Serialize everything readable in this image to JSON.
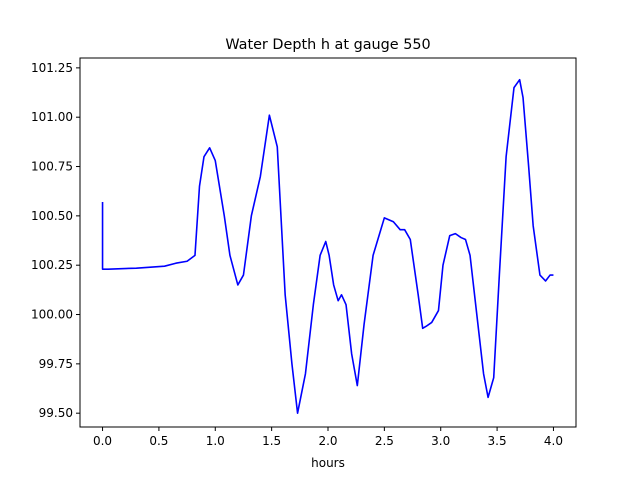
{
  "chart_data": {
    "type": "line",
    "title": "Water Depth h at gauge 550",
    "xlabel": "hours",
    "ylabel": "",
    "xlim": [
      -0.2,
      4.2
    ],
    "ylim": [
      99.43,
      101.3
    ],
    "xticks": [
      0.0,
      0.5,
      1.0,
      1.5,
      2.0,
      2.5,
      3.0,
      3.5,
      4.0
    ],
    "xtick_labels": [
      "0.0",
      "0.5",
      "1.0",
      "1.5",
      "2.0",
      "2.5",
      "3.0",
      "3.5",
      "4.0"
    ],
    "yticks": [
      99.5,
      99.75,
      100.0,
      100.25,
      100.5,
      100.75,
      101.0,
      101.25
    ],
    "ytick_labels": [
      "99.50",
      "99.75",
      "100.00",
      "100.25",
      "100.50",
      "100.75",
      "101.00",
      "101.25"
    ],
    "grid": false,
    "series": [
      {
        "color": "#0000ff",
        "x": [
          0.0,
          0.0,
          0.05,
          0.3,
          0.55,
          0.65,
          0.75,
          0.82,
          0.86,
          0.9,
          0.95,
          1.0,
          1.08,
          1.13,
          1.2,
          1.25,
          1.32,
          1.4,
          1.48,
          1.55,
          1.62,
          1.68,
          1.73,
          1.8,
          1.87,
          1.93,
          1.98,
          2.01,
          2.05,
          2.09,
          2.12,
          2.16,
          2.21,
          2.26,
          2.32,
          2.4,
          2.5,
          2.58,
          2.64,
          2.68,
          2.73,
          2.8,
          2.84,
          2.87,
          2.92,
          2.98,
          3.02,
          3.08,
          3.13,
          3.18,
          3.22,
          3.26,
          3.32,
          3.38,
          3.42,
          3.47,
          3.52,
          3.58,
          3.65,
          3.7,
          3.73,
          3.78,
          3.82,
          3.88,
          3.93,
          3.97,
          4.0
        ],
        "y": [
          100.57,
          100.23,
          100.23,
          100.235,
          100.245,
          100.26,
          100.27,
          100.3,
          100.65,
          100.8,
          100.845,
          100.78,
          100.5,
          100.3,
          100.15,
          100.2,
          100.5,
          100.7,
          101.01,
          100.85,
          100.1,
          99.75,
          99.5,
          99.7,
          100.05,
          100.3,
          100.37,
          100.3,
          100.15,
          100.07,
          100.1,
          100.05,
          99.8,
          99.64,
          99.95,
          100.3,
          100.49,
          100.47,
          100.43,
          100.43,
          100.38,
          100.1,
          99.93,
          99.94,
          99.96,
          100.02,
          100.25,
          100.4,
          100.41,
          100.39,
          100.38,
          100.3,
          100.0,
          99.7,
          99.58,
          99.68,
          100.2,
          100.8,
          101.15,
          101.19,
          101.1,
          100.75,
          100.45,
          100.2,
          100.17,
          100.2,
          100.2
        ]
      }
    ]
  }
}
